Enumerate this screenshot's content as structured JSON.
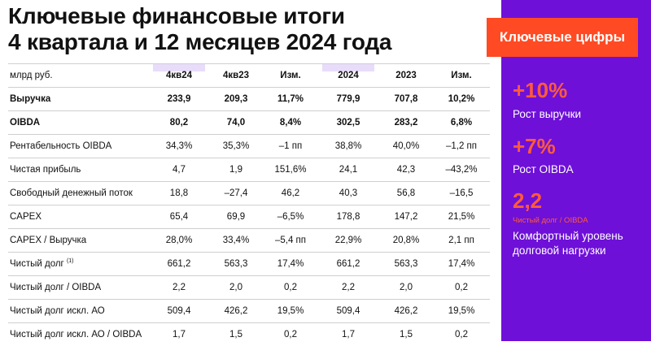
{
  "title": {
    "line1": "Ключевые финансовые итоги",
    "line2": "4 квартала и 12 месяцев 2024 года"
  },
  "table": {
    "unit": "млрд руб.",
    "columns": [
      "4кв24",
      "4кв23",
      "Изм.",
      "2024",
      "2023",
      "Изм."
    ],
    "rows": [
      {
        "label": "Выручка",
        "values": [
          "233,9",
          "209,3",
          "11,7%",
          "779,9",
          "707,8",
          "10,2%"
        ]
      },
      {
        "label": "OIBDA",
        "values": [
          "80,2",
          "74,0",
          "8,4%",
          "302,5",
          "283,2",
          "6,8%"
        ]
      },
      {
        "label": "Рентабельность OIBDA",
        "values": [
          "34,3%",
          "35,3%",
          "–1 пп",
          "38,8%",
          "40,0%",
          "–1,2 пп"
        ]
      },
      {
        "label": "Чистая прибыль",
        "values": [
          "4,7",
          "1,9",
          "151,6%",
          "24,1",
          "42,3",
          "–43,2%"
        ]
      },
      {
        "label": "Свободный денежный поток",
        "values": [
          "18,8",
          "–27,4",
          "46,2",
          "40,3",
          "56,8",
          "–16,5"
        ]
      },
      {
        "label": "CAPEX",
        "values": [
          "65,4",
          "69,9",
          "–6,5%",
          "178,8",
          "147,2",
          "21,5%"
        ]
      },
      {
        "label": "CAPEX / Выручка",
        "values": [
          "28,0%",
          "33,4%",
          "–5,4 пп",
          "22,9%",
          "20,8%",
          "2,1 пп"
        ]
      },
      {
        "label": "Чистый долг",
        "footnote": "(1)",
        "values": [
          "661,2",
          "563,3",
          "17,4%",
          "661,2",
          "563,3",
          "17,4%"
        ]
      },
      {
        "label": "Чистый долг / OIBDA",
        "values": [
          "2,2",
          "2,0",
          "0,2",
          "2,2",
          "2,0",
          "0,2"
        ]
      },
      {
        "label": "Чистый долг искл. АО",
        "values": [
          "509,4",
          "426,2",
          "19,5%",
          "509,4",
          "426,2",
          "19,5%"
        ]
      },
      {
        "label": "Чистый долг искл. АО / OIBDA",
        "values": [
          "1,7",
          "1,5",
          "0,2",
          "1,7",
          "1,5",
          "0,2"
        ]
      }
    ]
  },
  "panel": {
    "tag": "Ключевые цифры",
    "figures": [
      {
        "value": "+10%",
        "desc": "Рост выручки"
      },
      {
        "value": "+7%",
        "desc": "Рост OIBDA"
      },
      {
        "value": "2,2",
        "sub": "Чистый долг / OIBDA",
        "desc_line1": "Комфортный уровень",
        "desc_line2": "долговой нагрузки"
      }
    ]
  },
  "colors": {
    "accent_purple": "#6e10d8",
    "accent_orange": "#ff4a23",
    "highlight_column": "#e8dcfb"
  }
}
